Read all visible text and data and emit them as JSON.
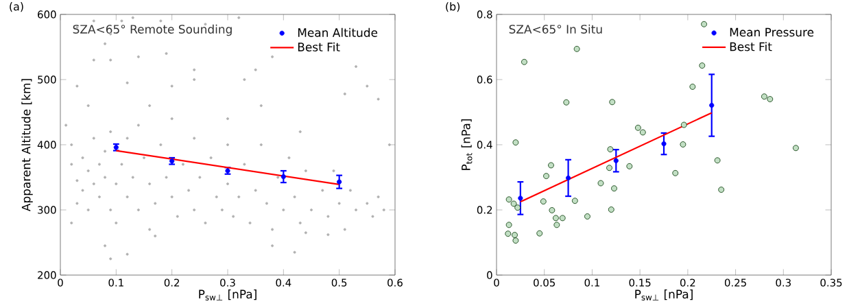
{
  "chart_data": [
    {
      "type": "scatter",
      "title": "(a)",
      "annotations": [
        "SZA<65° Remote Sounding"
      ],
      "xlabel": "P$_{sw⊥}$ [nPa]",
      "ylabel": "Apparent Altitude [km]",
      "xlim": [
        0,
        0.6
      ],
      "ylim": [
        200,
        600
      ],
      "xticks": [
        0,
        0.1,
        0.2,
        0.3,
        0.4,
        0.5,
        0.6
      ],
      "yticks": [
        200,
        300,
        400,
        500,
        600
      ],
      "legend": "top right",
      "series": [
        {
          "marker": "circle",
          "color": "#b0b0b0",
          "x": [
            0.03,
            0.06,
            0.09,
            0.08,
            0.09,
            0.11,
            0.13,
            0.18,
            0.26,
            0.32,
            0.38,
            0.19,
            0.24,
            0.14,
            0.06,
            0.35,
            0.53,
            0.55,
            0.57,
            0.51,
            0.24,
            0.12,
            0.2,
            0.03,
            0.05,
            0.33,
            0.43,
            0.36,
            0.16,
            0.3,
            0.01,
            0.02,
            0.02,
            0.03,
            0.03,
            0.04,
            0.04,
            0.05,
            0.05,
            0.06,
            0.06,
            0.07,
            0.07,
            0.08,
            0.08,
            0.09,
            0.09,
            0.1,
            0.1,
            0.11,
            0.12,
            0.12,
            0.13,
            0.14,
            0.14,
            0.15,
            0.16,
            0.16,
            0.17,
            0.18,
            0.19,
            0.2,
            0.2,
            0.21,
            0.22,
            0.23,
            0.24,
            0.24,
            0.25,
            0.26,
            0.27,
            0.28,
            0.29,
            0.3,
            0.3,
            0.31,
            0.32,
            0.33,
            0.34,
            0.35,
            0.36,
            0.37,
            0.38,
            0.39,
            0.4,
            0.41,
            0.42,
            0.43,
            0.44,
            0.45,
            0.47,
            0.48,
            0.49,
            0.5,
            0.51,
            0.52,
            0.53,
            0.55,
            0.56,
            0.57,
            0.58,
            0.59,
            0.09,
            0.12,
            0.08,
            0.38,
            0.42,
            0.44,
            0.02,
            0.17,
            0.48
          ],
          "values": [
            580,
            590,
            570,
            555,
            530,
            590,
            595,
            590,
            585,
            595,
            535,
            540,
            515,
            535,
            530,
            515,
            520,
            490,
            470,
            478,
            500,
            495,
            490,
            490,
            460,
            500,
            420,
            460,
            460,
            440,
            430,
            400,
            370,
            345,
            310,
            380,
            330,
            360,
            300,
            340,
            410,
            370,
            320,
            390,
            350,
            300,
            420,
            340,
            280,
            370,
            320,
            410,
            350,
            300,
            430,
            380,
            340,
            270,
            310,
            400,
            350,
            320,
            440,
            290,
            370,
            330,
            300,
            410,
            350,
            280,
            380,
            320,
            300,
            340,
            400,
            290,
            320,
            370,
            280,
            330,
            400,
            310,
            270,
            350,
            300,
            380,
            320,
            280,
            360,
            300,
            330,
            290,
            360,
            310,
            270,
            330,
            300,
            310,
            290,
            320,
            300,
            400,
            225,
            232,
            245,
            245,
            235,
            265,
            280,
            260,
            262
          ]
        },
        {
          "marker": "circle",
          "name": "Mean Altitude",
          "color": "#0000ff",
          "x": [
            0.1,
            0.2,
            0.3,
            0.4,
            0.5
          ],
          "values": [
            396,
            375,
            360,
            351,
            343
          ],
          "errors": [
            5,
            5,
            5,
            9,
            10
          ]
        },
        {
          "type": "line",
          "name": "Best Fit",
          "color": "#ff0000",
          "x": [
            0.1,
            0.5
          ],
          "values": [
            391,
            339
          ]
        }
      ]
    },
    {
      "type": "scatter",
      "title": "(b)",
      "annotations": [
        "SZA<65° In Situ"
      ],
      "xlabel": "P$_{sw⊥}$ [nPa]",
      "ylabel": "P$_{tot}$ [nPa]",
      "xlim": [
        0,
        0.35
      ],
      "ylim": [
        0,
        0.8
      ],
      "xticks": [
        0,
        0.05,
        0.1,
        0.15,
        0.2,
        0.25,
        0.3,
        0.35
      ],
      "yticks": [
        0,
        0.2,
        0.4,
        0.6,
        0.8
      ],
      "legend": "top right",
      "series": [
        {
          "marker": "circle",
          "color": "#c2dfc4",
          "x": [
            0.012,
            0.013,
            0.013,
            0.018,
            0.019,
            0.02,
            0.02,
            0.022,
            0.029,
            0.045,
            0.049,
            0.052,
            0.057,
            0.058,
            0.062,
            0.063,
            0.069,
            0.073,
            0.082,
            0.084,
            0.095,
            0.109,
            0.118,
            0.119,
            0.12,
            0.121,
            0.123,
            0.139,
            0.148,
            0.153,
            0.187,
            0.195,
            0.196,
            0.205,
            0.217,
            0.215,
            0.231,
            0.235,
            0.28,
            0.286,
            0.313
          ],
          "values": [
            0.127,
            0.154,
            0.232,
            0.219,
            0.123,
            0.106,
            0.407,
            0.207,
            0.654,
            0.128,
            0.226,
            0.304,
            0.337,
            0.199,
            0.175,
            0.154,
            0.175,
            0.53,
            0.228,
            0.694,
            0.18,
            0.282,
            0.329,
            0.386,
            0.201,
            0.531,
            0.266,
            0.334,
            0.452,
            0.438,
            0.313,
            0.401,
            0.461,
            0.578,
            0.77,
            0.643,
            0.352,
            0.262,
            0.548,
            0.54,
            0.39
          ]
        },
        {
          "marker": "circle",
          "name": "Mean Pressure",
          "color": "#0000ff",
          "x": [
            0.025,
            0.075,
            0.125,
            0.175,
            0.225
          ],
          "values": [
            0.236,
            0.298,
            0.351,
            0.403,
            0.521
          ],
          "errors": [
            0.05,
            0.056,
            0.034,
            0.033,
            0.095
          ]
        },
        {
          "type": "line",
          "name": "Best Fit",
          "color": "#ff0000",
          "x": [
            0.025,
            0.225
          ],
          "values": [
            0.225,
            0.498
          ]
        }
      ]
    }
  ]
}
